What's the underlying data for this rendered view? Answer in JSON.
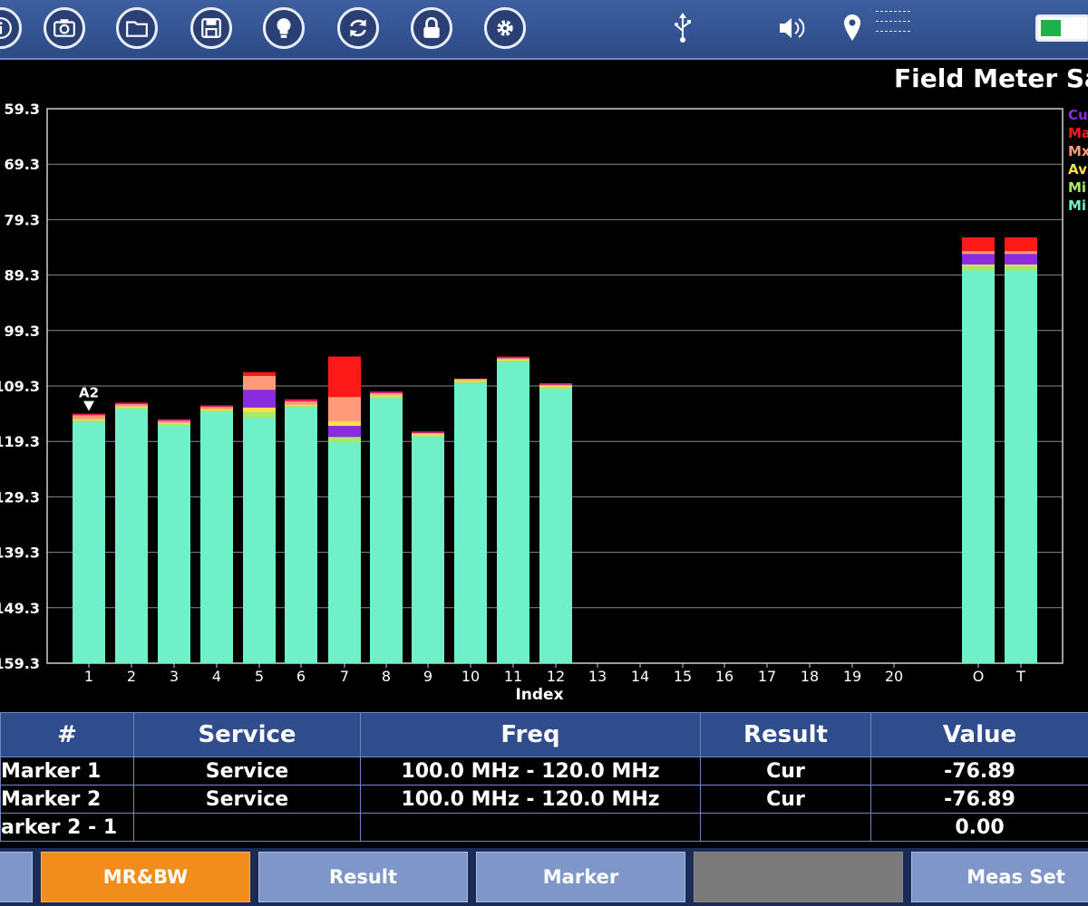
{
  "toolbar": {
    "buttons": [
      {
        "icon": "info-icon"
      },
      {
        "icon": "camera-icon"
      },
      {
        "icon": "folder-icon"
      },
      {
        "icon": "save-icon"
      },
      {
        "icon": "lightbulb-icon"
      },
      {
        "icon": "refresh-icon"
      },
      {
        "icon": "lock-icon"
      },
      {
        "icon": "gear-icon"
      }
    ],
    "status_icons": [
      "usb-icon",
      "speaker-icon",
      "location-pin-icon"
    ],
    "battery_level": 0.45,
    "battery_color": "#1fb04a"
  },
  "chart_title": "Field Meter Sa",
  "legend": [
    {
      "label": "Cu",
      "color": "#8a2be2"
    },
    {
      "label": "Ma",
      "color": "#ff1a1a"
    },
    {
      "label": "Mx",
      "color": "#ff9a7a"
    },
    {
      "label": "Av",
      "color": "#ffe04a"
    },
    {
      "label": "Mi",
      "color": "#a6e86a"
    },
    {
      "label": "Mi",
      "color": "#6ff0c8"
    }
  ],
  "chart_data": {
    "type": "bar",
    "title": "Field Meter Sa",
    "xlabel": "Index",
    "ylabel": "",
    "ylim": [
      -159.3,
      -59.3
    ],
    "y_ticks": [
      "59.3",
      "69.3",
      "79.3",
      "89.3",
      "99.3",
      "109.3",
      "119.3",
      "129.3",
      "139.3",
      "149.3",
      "159.3"
    ],
    "categories": [
      "1",
      "2",
      "3",
      "4",
      "5",
      "6",
      "7",
      "8",
      "9",
      "10",
      "11",
      "12",
      "13",
      "14",
      "15",
      "16",
      "17",
      "18",
      "19",
      "20",
      "O",
      "T"
    ],
    "series": [
      {
        "name": "Cu",
        "color": "#8a2be2",
        "values": [
          -114.5,
          -112.5,
          -115.5,
          -113.0,
          -110.0,
          -112.0,
          -116.5,
          -110.5,
          -117.7,
          -108.0,
          -104.2,
          -109.0,
          null,
          null,
          null,
          null,
          null,
          null,
          null,
          null,
          -85.5,
          -85.5
        ]
      },
      {
        "name": "Ma",
        "color": "#ff1a1a",
        "values": [
          -114.3,
          -112.3,
          -115.3,
          -112.8,
          -106.8,
          -111.7,
          -104.0,
          -110.3,
          -117.5,
          -108.0,
          -104.0,
          -108.8,
          null,
          null,
          null,
          null,
          null,
          null,
          null,
          null,
          -82.5,
          -82.5
        ]
      },
      {
        "name": "Mx",
        "color": "#ff9a7a",
        "values": [
          -114.6,
          -112.6,
          -115.6,
          -113.1,
          -107.5,
          -112.1,
          -111.3,
          -110.6,
          -117.8,
          -108.0,
          -104.3,
          -109.1,
          null,
          null,
          null,
          null,
          null,
          null,
          null,
          null,
          -85.0,
          -85.0
        ]
      },
      {
        "name": "Av",
        "color": "#ffe04a",
        "values": [
          -115.3,
          -113.0,
          -116.0,
          -113.5,
          -113.2,
          -112.7,
          -115.7,
          -111.0,
          -118.0,
          -108.3,
          -104.5,
          -109.3,
          null,
          null,
          null,
          null,
          null,
          null,
          null,
          null,
          -87.4,
          -87.4
        ]
      },
      {
        "name": "Mi",
        "color": "#a6e86a",
        "values": [
          -115.5,
          -113.2,
          -116.2,
          -113.7,
          -114.0,
          -112.9,
          -118.5,
          -111.2,
          -118.2,
          -108.5,
          -104.7,
          -109.5,
          null,
          null,
          null,
          null,
          null,
          null,
          null,
          null,
          -87.6,
          -87.6
        ]
      },
      {
        "name": "Mi",
        "color": "#6ff0c8",
        "values": [
          -115.8,
          -113.5,
          -116.5,
          -114.0,
          -115.0,
          -113.2,
          -119.5,
          -111.5,
          -118.5,
          -108.8,
          -105.0,
          -109.8,
          null,
          null,
          null,
          null,
          null,
          null,
          null,
          null,
          -88.5,
          -88.5
        ]
      }
    ],
    "marker": {
      "label": "A2",
      "index": 1
    },
    "grid": true,
    "legend_position": "right"
  },
  "table": {
    "headers": [
      "#",
      "Service",
      "Freq",
      "Result",
      "Value"
    ],
    "rows": [
      [
        "Marker 1",
        "Service",
        "100.0 MHz - 120.0 MHz",
        "Cur",
        "-76.89"
      ],
      [
        "Marker 2",
        "Service",
        "100.0 MHz - 120.0 MHz",
        "Cur",
        "-76.89"
      ],
      [
        "arker 2 - 1",
        "",
        "",
        "",
        "0.00"
      ]
    ]
  },
  "menu": {
    "buttons": [
      "",
      "MR&BW",
      "Result",
      "Marker",
      "",
      "Meas Set"
    ],
    "active": "MR&BW"
  }
}
